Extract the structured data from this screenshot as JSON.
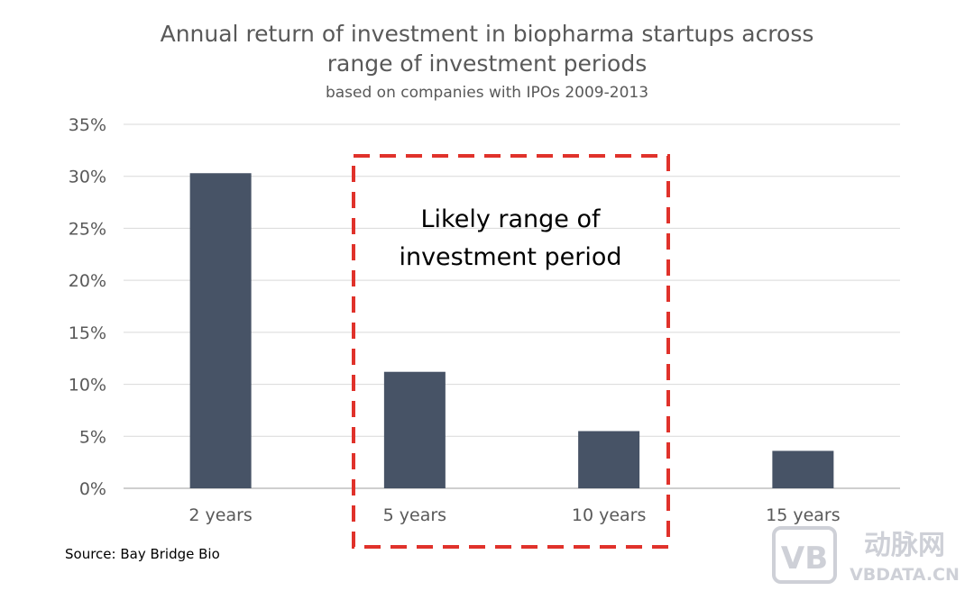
{
  "chart_data": {
    "type": "bar",
    "title": "Annual return of investment in biopharma startups across range of investment periods",
    "title_lines": [
      "Annual return of investment in biopharma startups across",
      "range of investment periods"
    ],
    "subtitle": "based on companies with IPOs 2009-2013",
    "categories": [
      "2 years",
      "5 years",
      "10 years",
      "15 years"
    ],
    "values": [
      0.303,
      0.112,
      0.055,
      0.036
    ],
    "ylim": [
      0,
      0.35
    ],
    "yticks": [
      0,
      0.05,
      0.1,
      0.15,
      0.2,
      0.25,
      0.3,
      0.35
    ],
    "ytick_labels": [
      "0%",
      "5%",
      "10%",
      "15%",
      "20%",
      "25%",
      "30%",
      "35%"
    ],
    "xlabel": "",
    "ylabel": "",
    "grid": true,
    "legend": "none",
    "bar_color": "#475366",
    "gridline_color": "#d9d9d9",
    "annotation": {
      "lines": [
        "Likely range of",
        "investment period"
      ],
      "box_style": "dashed",
      "box_color": "#e0322b",
      "spans_categories": [
        "5 years",
        "10 years"
      ]
    }
  },
  "source": "Source: Bay Bridge Bio",
  "watermark": {
    "logo_letters": "VB",
    "brand_name": "动脉网",
    "site": "VBDATA.CN",
    "color": "#c9ccd3"
  }
}
